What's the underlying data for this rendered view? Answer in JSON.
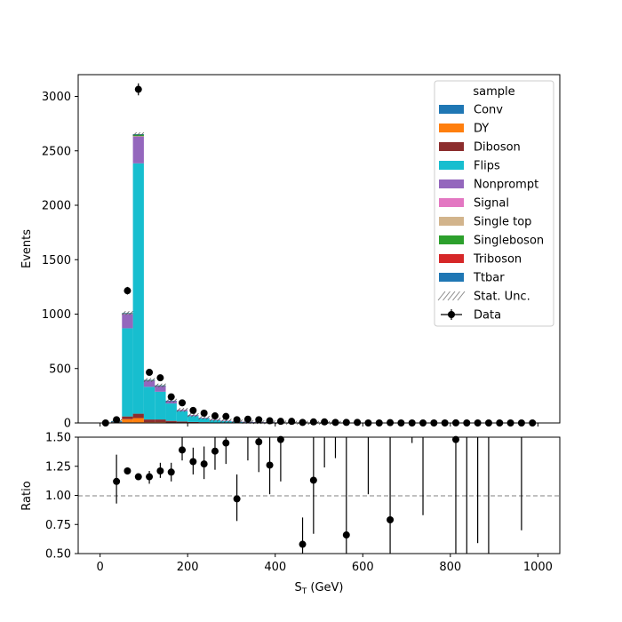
{
  "chart_data": [
    {
      "type": "bar",
      "stacked": true,
      "ylabel": "Events",
      "ylim": [
        0,
        3200
      ],
      "xlim": [
        -50,
        1050
      ],
      "y_ticks": [
        0,
        500,
        1000,
        1500,
        2000,
        2500,
        3000
      ],
      "bin_width": 25,
      "bin_centers": [
        12.5,
        37.5,
        62.5,
        87.5,
        112.5,
        137.5,
        162.5,
        187.5,
        212.5,
        237.5,
        262.5,
        287.5,
        312.5,
        337.5,
        362.5,
        387.5,
        412.5,
        437.5,
        462.5,
        487.5,
        512.5,
        537.5,
        562.5,
        587.5,
        612.5,
        637.5,
        662.5,
        687.5,
        712.5,
        737.5,
        762.5,
        787.5,
        812.5,
        837.5,
        862.5,
        887.5,
        912.5,
        937.5,
        962.5,
        987.5
      ],
      "legend": {
        "title": "sample",
        "placement": "top-right",
        "entries": [
          "Conv",
          "DY",
          "Diboson",
          "Flips",
          "Nonprompt",
          "Signal",
          "Single top",
          "Singleboson",
          "Triboson",
          "Ttbar",
          "Stat. Unc.",
          "Data"
        ]
      },
      "series": [
        {
          "name": "Conv",
          "color": "#1f77b4",
          "values": [
            0,
            2,
            5,
            5,
            2,
            2,
            1,
            1,
            0,
            0,
            0,
            0,
            0,
            0,
            0,
            0,
            0,
            0,
            0,
            0,
            0,
            0,
            0,
            0,
            0,
            0,
            0,
            0,
            0,
            0,
            0,
            0,
            0,
            0,
            0,
            0,
            0,
            0,
            0,
            0
          ]
        },
        {
          "name": "DY",
          "color": "#ff7f0e",
          "values": [
            0,
            3,
            30,
            40,
            5,
            5,
            3,
            2,
            1,
            1,
            0,
            0,
            0,
            0,
            0,
            0,
            0,
            0,
            0,
            0,
            0,
            0,
            0,
            0,
            0,
            0,
            0,
            0,
            0,
            0,
            0,
            0,
            0,
            0,
            0,
            0,
            0,
            0,
            0,
            0
          ]
        },
        {
          "name": "Diboson",
          "color": "#8c2d2d",
          "values": [
            0,
            2,
            25,
            40,
            25,
            25,
            15,
            10,
            8,
            6,
            4,
            3,
            2,
            2,
            1,
            1,
            1,
            1,
            0,
            0,
            0,
            0,
            0,
            0,
            0,
            0,
            0,
            0,
            0,
            0,
            0,
            0,
            0,
            0,
            0,
            0,
            0,
            0,
            0,
            0
          ]
        },
        {
          "name": "Flips",
          "color": "#17becf",
          "values": [
            0,
            6,
            810,
            2300,
            300,
            255,
            160,
            95,
            55,
            35,
            22,
            15,
            10,
            7,
            5,
            4,
            3,
            2,
            2,
            1,
            1,
            1,
            0,
            0,
            0,
            0,
            0,
            0,
            0,
            0,
            0,
            0,
            0,
            0,
            0,
            0,
            0,
            0,
            0,
            0
          ]
        },
        {
          "name": "Nonprompt",
          "color": "#9467bd",
          "values": [
            0,
            3,
            135,
            250,
            60,
            55,
            25,
            12,
            8,
            6,
            4,
            3,
            2,
            1,
            1,
            1,
            0,
            0,
            0,
            0,
            0,
            0,
            0,
            0,
            0,
            0,
            0,
            0,
            0,
            0,
            0,
            0,
            0,
            0,
            0,
            0,
            0,
            0,
            0,
            0
          ]
        },
        {
          "name": "Signal",
          "color": "#e377c2",
          "values": [
            0,
            0,
            0,
            0,
            0,
            0,
            0,
            0,
            0,
            0,
            0,
            0,
            0,
            0,
            0,
            0,
            0,
            0,
            0,
            0,
            0,
            0,
            0,
            0,
            0,
            0,
            0,
            0,
            0,
            0,
            0,
            0,
            0,
            0,
            0,
            0,
            0,
            0,
            0,
            0
          ]
        },
        {
          "name": "Single top",
          "color": "#d2b48c",
          "values": [
            0,
            0,
            1,
            1,
            1,
            1,
            0,
            0,
            0,
            0,
            0,
            0,
            0,
            0,
            0,
            0,
            0,
            0,
            0,
            0,
            0,
            0,
            0,
            0,
            0,
            0,
            0,
            0,
            0,
            0,
            0,
            0,
            0,
            0,
            0,
            0,
            0,
            0,
            0,
            0
          ]
        },
        {
          "name": "Singleboson",
          "color": "#2ca02c",
          "values": [
            0,
            0,
            2,
            15,
            1,
            1,
            0,
            0,
            0,
            0,
            0,
            0,
            0,
            0,
            0,
            0,
            0,
            0,
            0,
            0,
            0,
            0,
            0,
            0,
            0,
            0,
            0,
            0,
            0,
            0,
            0,
            0,
            0,
            0,
            0,
            0,
            0,
            0,
            0,
            0
          ]
        },
        {
          "name": "Triboson",
          "color": "#d62728",
          "values": [
            0,
            0,
            0,
            0,
            0,
            0,
            0,
            0,
            0,
            0,
            0,
            0,
            0,
            0,
            0,
            0,
            0,
            0,
            0,
            0,
            0,
            0,
            0,
            0,
            0,
            0,
            0,
            0,
            0,
            0,
            0,
            0,
            0,
            0,
            0,
            0,
            0,
            0,
            0,
            0
          ]
        },
        {
          "name": "Ttbar",
          "color": "#1f77b4",
          "values": [
            0,
            1,
            2,
            2,
            1,
            1,
            1,
            0,
            0,
            0,
            0,
            0,
            0,
            0,
            0,
            0,
            0,
            0,
            0,
            0,
            0,
            0,
            0,
            0,
            0,
            0,
            0,
            0,
            0,
            0,
            0,
            0,
            0,
            0,
            0,
            0,
            0,
            0,
            0,
            0
          ]
        }
      ],
      "data_points": {
        "name": "Data",
        "x": [
          12.5,
          37.5,
          62.5,
          87.5,
          112.5,
          137.5,
          162.5,
          187.5,
          212.5,
          237.5,
          262.5,
          287.5,
          312.5,
          337.5,
          362.5,
          387.5,
          412.5,
          437.5,
          462.5,
          487.5,
          512.5,
          537.5,
          562.5,
          587.5,
          612.5,
          637.5,
          662.5,
          687.5,
          712.5,
          737.5,
          762.5,
          787.5,
          812.5,
          837.5,
          862.5,
          887.5,
          912.5,
          937.5,
          962.5,
          987.5
        ],
        "y": [
          0,
          30,
          1215,
          3065,
          465,
          415,
          240,
          185,
          115,
          90,
          65,
          60,
          30,
          35,
          30,
          20,
          15,
          15,
          5,
          10,
          10,
          5,
          5,
          5,
          0,
          0,
          3,
          0,
          0,
          0,
          0,
          0,
          1,
          0,
          0,
          0,
          0,
          0,
          0,
          0
        ],
        "yerr": [
          0,
          6,
          35,
          55,
          22,
          20,
          15,
          14,
          11,
          9,
          8,
          8,
          5,
          6,
          5,
          4,
          4,
          4,
          2,
          3,
          3,
          2,
          2,
          2,
          0,
          0,
          2,
          0,
          0,
          0,
          0,
          0,
          1,
          0,
          0,
          0,
          0,
          0,
          0,
          0
        ]
      }
    },
    {
      "type": "scatter",
      "xlabel": "S_T (GeV)",
      "ylabel": "Ratio",
      "ylim": [
        0.5,
        1.5
      ],
      "xlim": [
        -50,
        1050
      ],
      "x_ticks": [
        0,
        200,
        400,
        600,
        800,
        1000
      ],
      "y_ticks": [
        0.5,
        0.75,
        1.0,
        1.25,
        1.5
      ],
      "reference_line": 1.0,
      "points": [
        {
          "x": 37.5,
          "y": 1.12,
          "lo": 0.93,
          "hi": 1.35
        },
        {
          "x": 62.5,
          "y": 1.21,
          "lo": 1.18,
          "hi": 1.24
        },
        {
          "x": 87.5,
          "y": 1.16,
          "lo": 1.14,
          "hi": 1.18
        },
        {
          "x": 112.5,
          "y": 1.16,
          "lo": 1.1,
          "hi": 1.21
        },
        {
          "x": 137.5,
          "y": 1.21,
          "lo": 1.15,
          "hi": 1.28
        },
        {
          "x": 162.5,
          "y": 1.2,
          "lo": 1.12,
          "hi": 1.28
        },
        {
          "x": 187.5,
          "y": 1.39,
          "lo": 1.3,
          "hi": 1.5
        },
        {
          "x": 212.5,
          "y": 1.29,
          "lo": 1.18,
          "hi": 1.41
        },
        {
          "x": 237.5,
          "y": 1.27,
          "lo": 1.14,
          "hi": 1.42
        },
        {
          "x": 262.5,
          "y": 1.38,
          "lo": 1.22,
          "hi": 1.5
        },
        {
          "x": 287.5,
          "y": 1.45,
          "lo": 1.27,
          "hi": 1.5
        },
        {
          "x": 312.5,
          "y": 0.97,
          "lo": 0.78,
          "hi": 1.18
        },
        {
          "x": 337.5,
          "y": null,
          "lo": 1.3,
          "hi": 1.5
        },
        {
          "x": 362.5,
          "y": 1.46,
          "lo": 1.2,
          "hi": 1.5
        },
        {
          "x": 387.5,
          "y": 1.26,
          "lo": 1.01,
          "hi": 1.5
        },
        {
          "x": 412.5,
          "y": 1.48,
          "lo": 1.12,
          "hi": 1.5
        },
        {
          "x": 462.5,
          "y": 0.58,
          "lo": 0.5,
          "hi": 0.81
        },
        {
          "x": 487.5,
          "y": 1.13,
          "lo": 0.67,
          "hi": 1.5
        },
        {
          "x": 512.5,
          "y": null,
          "lo": 1.24,
          "hi": 1.5
        },
        {
          "x": 537.5,
          "y": null,
          "lo": 1.32,
          "hi": 1.5
        },
        {
          "x": 562.5,
          "y": 0.66,
          "lo": 0.5,
          "hi": 1.5
        },
        {
          "x": 612.5,
          "y": null,
          "lo": 1.01,
          "hi": 1.5
        },
        {
          "x": 662.5,
          "y": 0.79,
          "lo": 0.5,
          "hi": 1.5
        },
        {
          "x": 712.5,
          "y": null,
          "lo": 1.45,
          "hi": 1.5
        },
        {
          "x": 737.5,
          "y": null,
          "lo": 0.83,
          "hi": 1.5
        },
        {
          "x": 812.5,
          "y": 1.48,
          "lo": 0.5,
          "hi": 1.5
        },
        {
          "x": 837.5,
          "y": null,
          "lo": 0.5,
          "hi": 1.5
        },
        {
          "x": 862.5,
          "y": null,
          "lo": 0.59,
          "hi": 1.5
        },
        {
          "x": 887.5,
          "y": null,
          "lo": 0.5,
          "hi": 1.5
        },
        {
          "x": 962.5,
          "y": null,
          "lo": 0.7,
          "hi": 1.5
        }
      ]
    }
  ]
}
